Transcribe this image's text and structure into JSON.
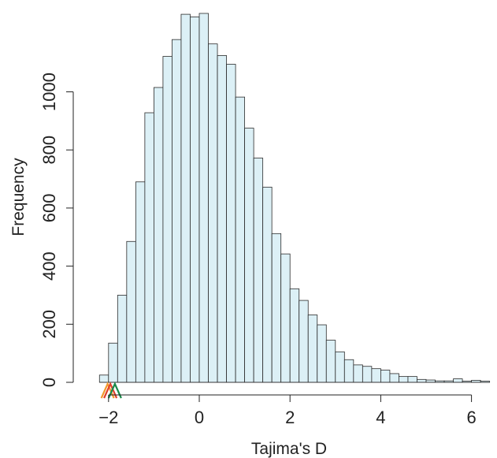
{
  "chart_data": {
    "type": "bar",
    "subtype": "histogram",
    "xlabel": "Tajima's D",
    "ylabel": "Frequency",
    "xlim": [
      -2.35,
      6.5
    ],
    "ylim": [
      0,
      1260
    ],
    "x_ticks": [
      -2,
      0,
      2,
      4,
      6
    ],
    "x_tick_labels": [
      "−2",
      "0",
      "2",
      "4",
      "6"
    ],
    "y_ticks": [
      0,
      200,
      400,
      600,
      800,
      1000
    ],
    "y_tick_labels": [
      "0",
      "200",
      "400",
      "600",
      "800",
      "1000"
    ],
    "bin_width": 0.2,
    "bin_start": -2.2,
    "values": [
      25,
      135,
      300,
      485,
      690,
      928,
      1015,
      1122,
      1180,
      1267,
      1258,
      1270,
      1165,
      1125,
      1095,
      982,
      875,
      772,
      672,
      512,
      442,
      322,
      282,
      232,
      198,
      145,
      105,
      78,
      60,
      55,
      47,
      42,
      30,
      20,
      20,
      10,
      8,
      5,
      5,
      12,
      4,
      7,
      4
    ],
    "bar_fill": "#dcf0f6",
    "bar_stroke": "#2b2b2b",
    "markers": [
      {
        "x": -2.02,
        "color": "#f29a2e"
      },
      {
        "x": -1.96,
        "color": "#e2412b"
      },
      {
        "x": -1.86,
        "color": "#1a8a4a"
      }
    ]
  }
}
